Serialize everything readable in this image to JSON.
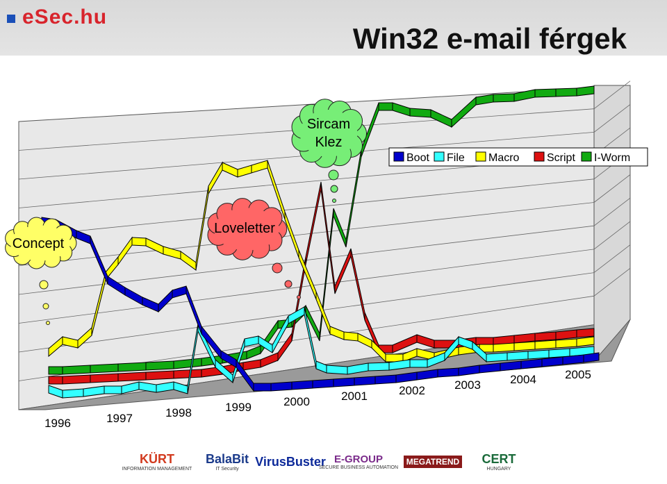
{
  "header": {
    "brand": "eSec.hu",
    "title": "Win32 e-mail férgek"
  },
  "legend": [
    {
      "name": "Boot",
      "color": "#0000cc"
    },
    {
      "name": "File",
      "color": "#33ffff"
    },
    {
      "name": "Macro",
      "color": "#ffff00"
    },
    {
      "name": "Script",
      "color": "#dd1111"
    },
    {
      "name": "I-Worm",
      "color": "#11aa11"
    }
  ],
  "callouts": [
    {
      "label": "Concept",
      "color": "#ffff66"
    },
    {
      "label": "Loveletter",
      "color": "#ff6666"
    },
    {
      "label": "Sircam\nKlez",
      "color": "#77ee77"
    }
  ],
  "footer_logos": [
    {
      "name": "kurt-logo",
      "text": "KÜRT",
      "sub": "INFORMATION MANAGEMENT"
    },
    {
      "name": "balabit-logo",
      "text": "BalaBit",
      "sub": "IT Security"
    },
    {
      "name": "virusbuster-logo",
      "text": "VirusBuster",
      "sub": ""
    },
    {
      "name": "egroup-logo",
      "text": "E-GROUP",
      "sub": "SECURE BUSINESS AUTOMATION"
    },
    {
      "name": "megatrend-logo",
      "text": "MEGATREND",
      "sub": ""
    },
    {
      "name": "cert-logo",
      "text": "CERT",
      "sub": "HUNGARY"
    }
  ],
  "chart_data": {
    "type": "line",
    "title": "",
    "x_tick_labels": [
      "1996",
      "1997",
      "1998",
      "1999",
      "2000",
      "2001",
      "2002",
      "2003",
      "2004",
      "2005"
    ],
    "series": [
      {
        "name": "Boot",
        "color": "#0000cc"
      },
      {
        "name": "File",
        "color": "#33ffff"
      },
      {
        "name": "Macro",
        "color": "#ffff00"
      },
      {
        "name": "Script",
        "color": "#dd1111"
      },
      {
        "name": "I-Worm",
        "color": "#11aa11"
      }
    ],
    "annotations": [
      "Concept",
      "Loveletter",
      "Sircam\nKlez"
    ],
    "legend_position": "top-right",
    "grid": true
  }
}
